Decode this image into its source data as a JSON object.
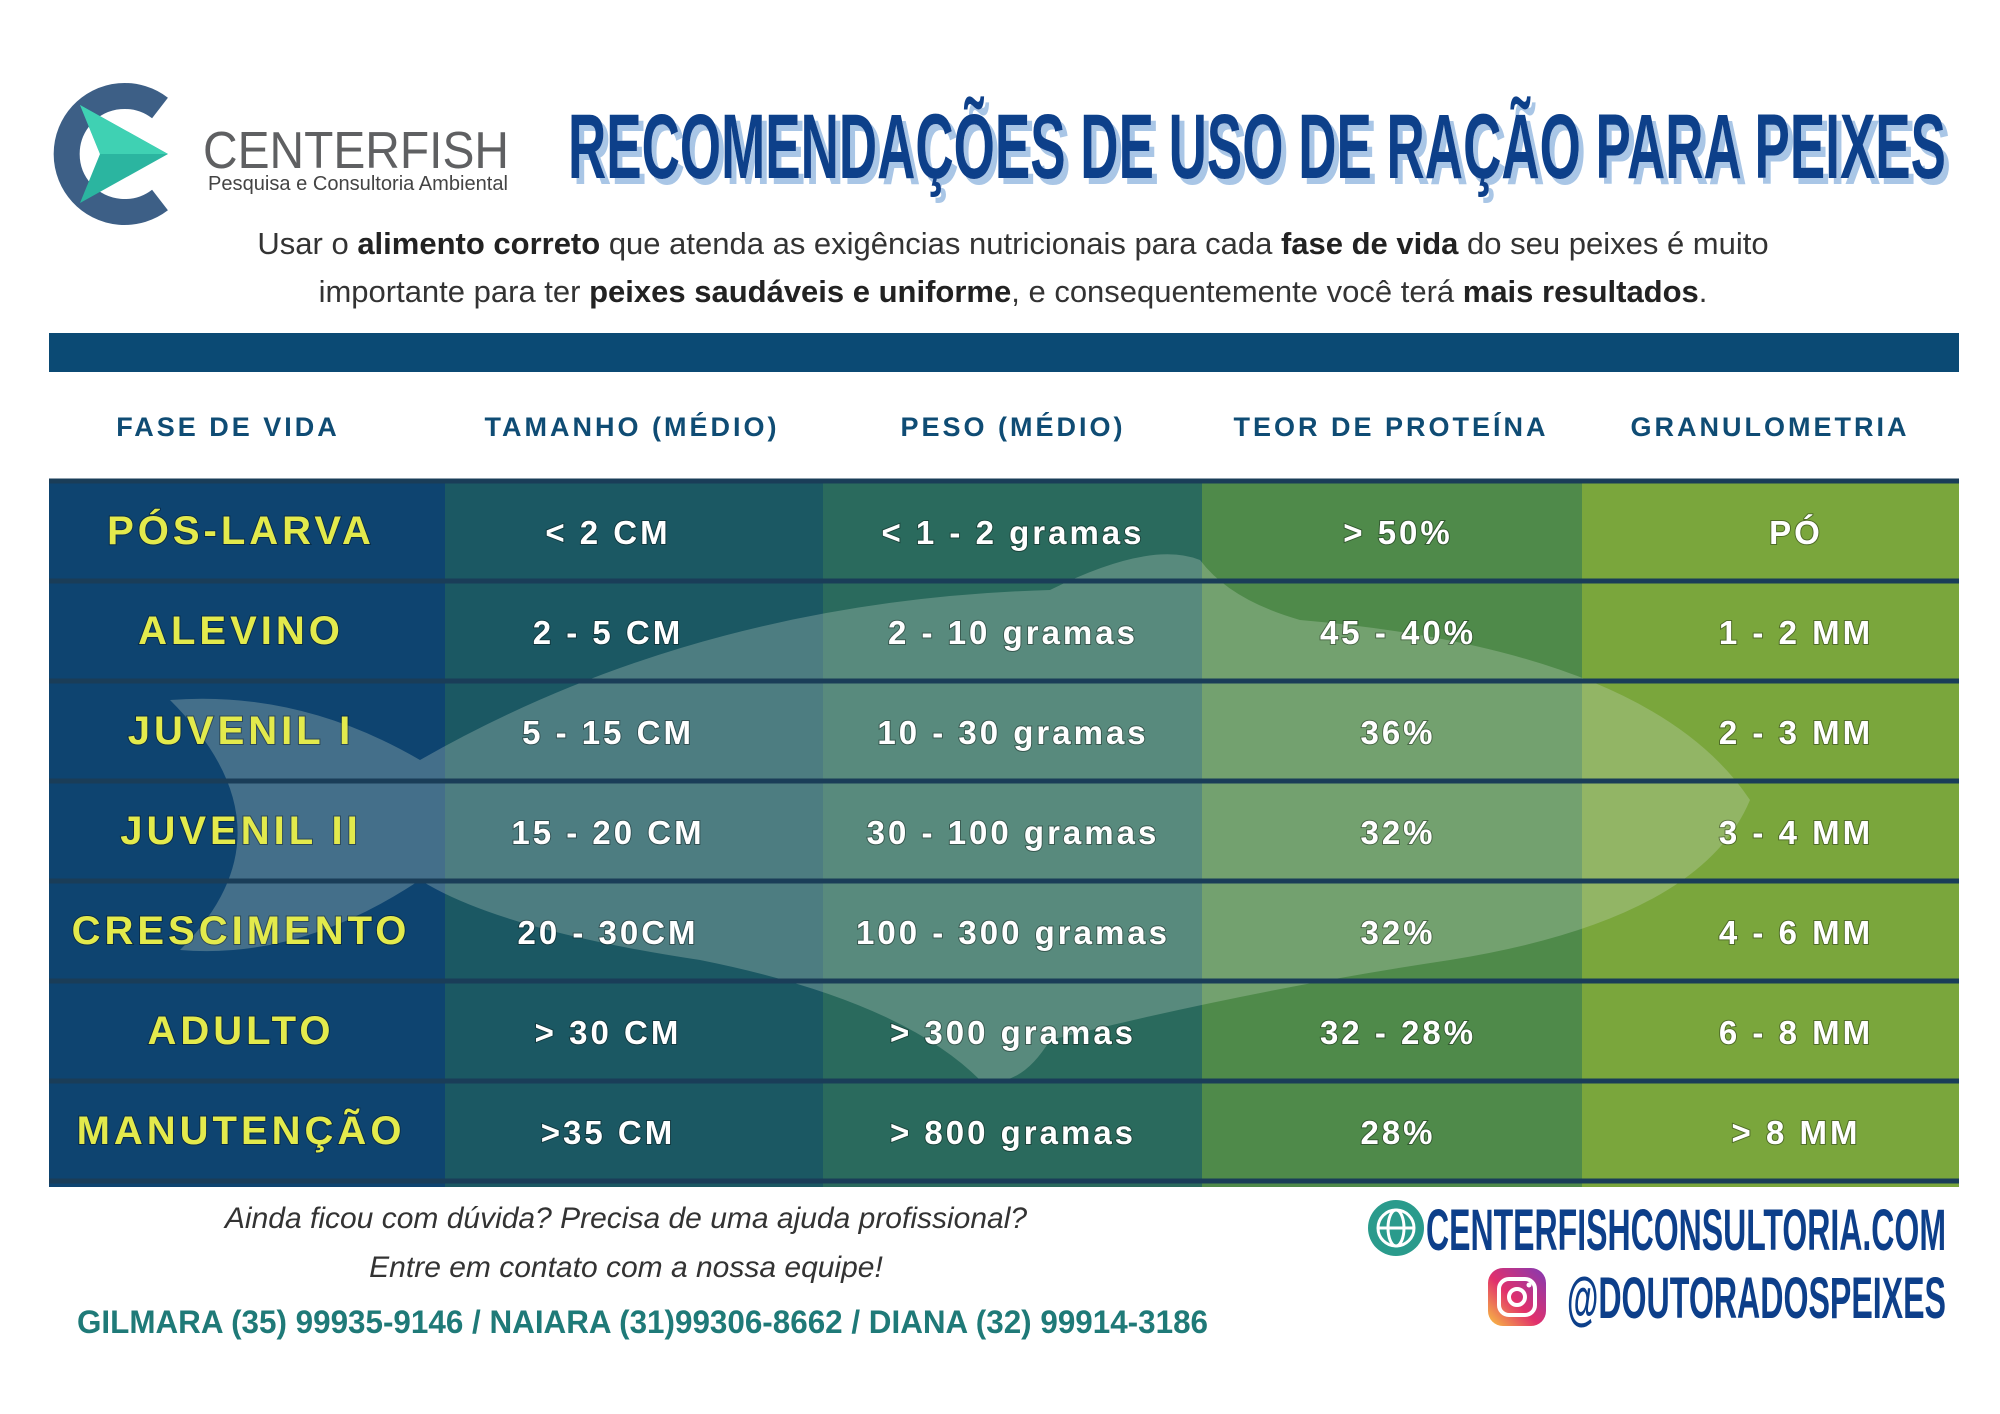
{
  "brand": {
    "name": "CENTERFISH",
    "tagline": "Pesquisa e Consultoria Ambiental"
  },
  "title": "RECOMENDAÇÕES DE USO DE RAÇÃO PARA PEIXES",
  "intro": {
    "lines": [
      [
        "Usar o ",
        "alimento correto",
        " que atenda as exigências nutricionais para cada ",
        "fase de vida",
        " do seu peixes é muito"
      ],
      [
        "importante para ter ",
        "peixes saudáveis e uniforme",
        ", e consequentemente você terá ",
        "mais resultados",
        "."
      ]
    ]
  },
  "table": {
    "headers": [
      "FASE DE VIDA",
      "TAMANHO (MÉDIO)",
      "PESO (MÉDIO)",
      "TEOR DE PROTEÍNA",
      "GRANULOMETRIA"
    ],
    "rows": [
      [
        "PÓS-LARVA",
        "< 2 CM",
        "< 1 - 2 gramas",
        "> 50%",
        "PÓ"
      ],
      [
        "ALEVINO",
        "2 - 5 CM",
        "2 - 10 gramas",
        "45 - 40%",
        "1 - 2 MM"
      ],
      [
        "JUVENIL I",
        "5 - 15 CM",
        "10 - 30 gramas",
        "36%",
        "2 - 3 MM"
      ],
      [
        "JUVENIL II",
        "15 - 20 CM",
        "30 - 100 gramas",
        "32%",
        "3 - 4 MM"
      ],
      [
        "CRESCIMENTO",
        "20 - 30CM",
        "100 - 300 gramas",
        "32%",
        "4 - 6 MM"
      ],
      [
        "ADULTO",
        "> 30 CM",
        "> 300 gramas",
        "32 - 28%",
        "6 - 8 MM"
      ],
      [
        "MANUTENÇÃO",
        ">35 CM",
        "> 800 gramas",
        "28%",
        "> 8 MM"
      ]
    ]
  },
  "footer": {
    "question": [
      "Ainda ficou com dúvida? Precisa de uma ajuda profissional?",
      "Entre em contato com a nossa equipe!"
    ],
    "contacts": "GILMARA (35) 99935-9146 / NAIARA (31)99306-8662 / DIANA (32) 99914-3186",
    "website": "CENTERFISHCONSULTORIA.COM",
    "instagram": "@DOUTORADOSPEIXES"
  }
}
